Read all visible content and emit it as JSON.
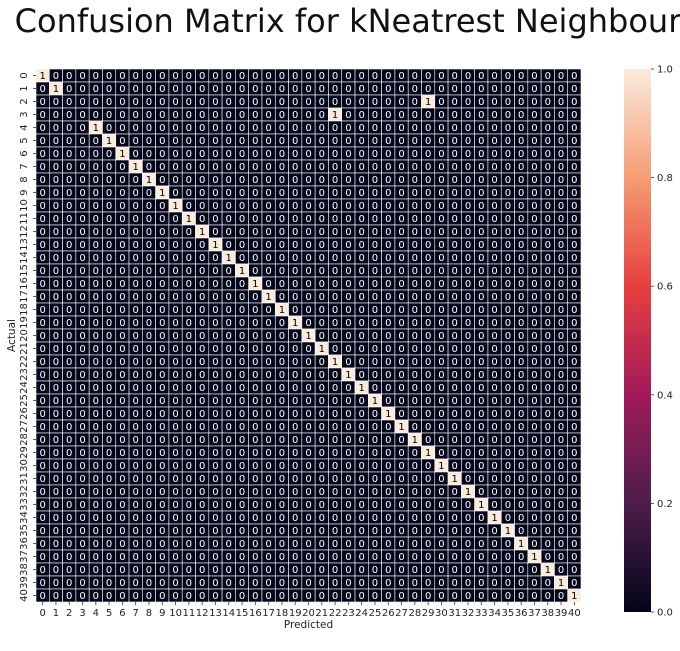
{
  "chart_data": {
    "type": "heatmap",
    "title": "Confusion Matrix for kNeatrest Neighbour",
    "xlabel": "Predicted",
    "ylabel": "Actual",
    "x_categories": [
      "0",
      "1",
      "2",
      "3",
      "4",
      "5",
      "6",
      "7",
      "8",
      "9",
      "10",
      "11",
      "12",
      "13",
      "14",
      "15",
      "16",
      "17",
      "18",
      "19",
      "20",
      "21",
      "22",
      "23",
      "24",
      "25",
      "26",
      "27",
      "28",
      "29",
      "30",
      "31",
      "32",
      "33",
      "34",
      "35",
      "36",
      "37",
      "38",
      "39",
      "40"
    ],
    "y_categories": [
      "0",
      "1",
      "2",
      "3",
      "4",
      "5",
      "6",
      "7",
      "8",
      "9",
      "10",
      "11",
      "12",
      "13",
      "14",
      "15",
      "16",
      "17",
      "18",
      "19",
      "20",
      "21",
      "22",
      "23",
      "24",
      "25",
      "26",
      "27",
      "28",
      "29",
      "30",
      "31",
      "32",
      "33",
      "34",
      "35",
      "36",
      "37",
      "38",
      "39",
      "40"
    ],
    "cells": [
      [
        0,
        0,
        1
      ],
      [
        1,
        1,
        1
      ],
      [
        2,
        29,
        1
      ],
      [
        3,
        22,
        1
      ],
      [
        4,
        4,
        1
      ],
      [
        5,
        5,
        1
      ],
      [
        6,
        6,
        1
      ],
      [
        7,
        7,
        1
      ],
      [
        8,
        8,
        1
      ],
      [
        9,
        9,
        1
      ],
      [
        10,
        10,
        1
      ],
      [
        11,
        11,
        1
      ],
      [
        12,
        12,
        1
      ],
      [
        13,
        13,
        1
      ],
      [
        14,
        14,
        1
      ],
      [
        15,
        15,
        1
      ],
      [
        16,
        16,
        1
      ],
      [
        17,
        17,
        1
      ],
      [
        18,
        18,
        1
      ],
      [
        19,
        19,
        1
      ],
      [
        20,
        20,
        1
      ],
      [
        21,
        21,
        1
      ],
      [
        22,
        22,
        1
      ],
      [
        23,
        23,
        1
      ],
      [
        24,
        24,
        1
      ],
      [
        25,
        25,
        1
      ],
      [
        26,
        26,
        1
      ],
      [
        27,
        27,
        1
      ],
      [
        28,
        28,
        1
      ],
      [
        29,
        29,
        1
      ],
      [
        30,
        30,
        1
      ],
      [
        31,
        31,
        1
      ],
      [
        32,
        32,
        1
      ],
      [
        33,
        33,
        1
      ],
      [
        34,
        34,
        1
      ],
      [
        35,
        35,
        1
      ],
      [
        36,
        36,
        1
      ],
      [
        37,
        37,
        1
      ],
      [
        38,
        38,
        1
      ],
      [
        39,
        39,
        1
      ],
      [
        40,
        40,
        1
      ]
    ],
    "default_value": 0,
    "value_range": [
      0.0,
      1.0
    ],
    "colorbar_ticks": [
      "0.0",
      "0.2",
      "0.4",
      "0.6",
      "0.8",
      "1.0"
    ],
    "colorbar_tick_values": [
      0.0,
      0.2,
      0.4,
      0.6,
      0.8,
      1.0
    ],
    "colormap": [
      "#03051a",
      "#4c1d4b",
      "#a11a5b",
      "#e83f3f",
      "#f69c73",
      "#faebdd"
    ],
    "cell_border_color": "#ffffff"
  }
}
